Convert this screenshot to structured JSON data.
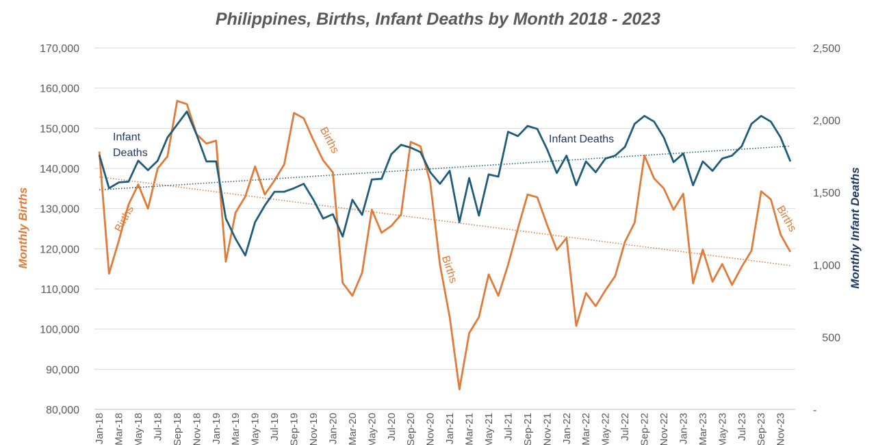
{
  "chart_data": {
    "type": "line",
    "title": "Philippines, Births, Infant Deaths by Month 2018 - 2023",
    "ylabel": "Monthly Births",
    "y2label": "Monthly Infant Deaths",
    "ylim": [
      80000,
      170000
    ],
    "y2lim": [
      0,
      2500
    ],
    "yticks": [
      "80,000",
      "90,000",
      "100,000",
      "110,000",
      "120,000",
      "130,000",
      "140,000",
      "150,000",
      "160,000",
      "170,000"
    ],
    "y2ticks": [
      "-",
      "500",
      "1,000",
      "1,500",
      "2,000",
      "2,500"
    ],
    "grid": true,
    "x": [
      "Jan-18",
      "Feb-18",
      "Mar-18",
      "Apr-18",
      "May-18",
      "Jun-18",
      "Jul-18",
      "Aug-18",
      "Sep-18",
      "Oct-18",
      "Nov-18",
      "Dec-18",
      "Jan-19",
      "Feb-19",
      "Mar-19",
      "Apr-19",
      "May-19",
      "Jun-19",
      "Jul-19",
      "Aug-19",
      "Sep-19",
      "Oct-19",
      "Nov-19",
      "Dec-19",
      "Jan-20",
      "Feb-20",
      "Mar-20",
      "Apr-20",
      "May-20",
      "Jun-20",
      "Jul-20",
      "Aug-20",
      "Sep-20",
      "Oct-20",
      "Nov-20",
      "Dec-20",
      "Jan-21",
      "Feb-21",
      "Mar-21",
      "Apr-21",
      "May-21",
      "Jun-21",
      "Jul-21",
      "Aug-21",
      "Sep-21",
      "Oct-21",
      "Nov-21",
      "Dec-21",
      "Jan-22",
      "Feb-22",
      "Mar-22",
      "Apr-22",
      "May-22",
      "Jun-22",
      "Jul-22",
      "Aug-22",
      "Sep-22",
      "Oct-22",
      "Nov-22",
      "Dec-22",
      "Jan-23",
      "Feb-23",
      "Mar-23",
      "Apr-23",
      "May-23",
      "Jun-23",
      "Jul-23",
      "Aug-23",
      "Sep-23",
      "Oct-23",
      "Nov-23",
      "Dec-23"
    ],
    "xtick_labels": [
      "Jan-18",
      "Mar-18",
      "May-18",
      "Jul-18",
      "Sep-18",
      "Nov-18",
      "Jan-19",
      "Mar-19",
      "May-19",
      "Jul-19",
      "Sep-19",
      "Nov-19",
      "Jan-20",
      "Mar-20",
      "May-20",
      "Jul-20",
      "Sep-20",
      "Nov-20",
      "Jan-21",
      "Mar-21",
      "May-21",
      "Jul-21",
      "Sep-21",
      "Nov-21",
      "Jan-22",
      "Mar-22",
      "May-22",
      "Jul-22",
      "Sep-22",
      "Nov-22",
      "Jan-23",
      "Mar-23",
      "May-23",
      "Jul-23",
      "Sep-23",
      "Nov-23"
    ],
    "series": [
      {
        "name": "Births",
        "axis": "left",
        "color": "#E07B39",
        "trendline": true,
        "values": [
          144200,
          113800,
          122000,
          131000,
          136000,
          130000,
          140000,
          143000,
          156800,
          156000,
          148500,
          146200,
          146900,
          116800,
          129000,
          133000,
          140500,
          133500,
          137000,
          141000,
          153800,
          152500,
          147000,
          142000,
          139000,
          111500,
          108300,
          114000,
          129700,
          124000,
          125700,
          128500,
          146600,
          145500,
          136500,
          116000,
          103000,
          85000,
          99000,
          103000,
          113600,
          108300,
          116000,
          125000,
          133500,
          132800,
          126000,
          119700,
          122700,
          100800,
          109000,
          105700,
          109700,
          113200,
          121700,
          126500,
          143200,
          137500,
          135000,
          129700,
          133700,
          111400,
          119800,
          111800,
          116200,
          111000,
          115500,
          119500,
          134300,
          132300,
          123500,
          119200
        ]
      },
      {
        "name": "Infant Deaths",
        "axis": "right",
        "color": "#1F5C7A",
        "trendline": true,
        "values": [
          1760,
          1530,
          1570,
          1575,
          1720,
          1655,
          1720,
          1880,
          1970,
          2060,
          1900,
          1715,
          1715,
          1320,
          1180,
          1065,
          1295,
          1410,
          1505,
          1505,
          1530,
          1560,
          1450,
          1320,
          1350,
          1195,
          1450,
          1345,
          1590,
          1595,
          1765,
          1830,
          1810,
          1780,
          1640,
          1560,
          1650,
          1295,
          1600,
          1340,
          1625,
          1610,
          1920,
          1890,
          1960,
          1940,
          1800,
          1635,
          1755,
          1550,
          1715,
          1640,
          1735,
          1755,
          1815,
          1975,
          2030,
          1990,
          1880,
          1710,
          1770,
          1550,
          1715,
          1650,
          1735,
          1755,
          1820,
          1975,
          2030,
          1990,
          1880,
          1715
        ]
      }
    ],
    "annotations": [
      {
        "text": "Infant",
        "color": "#1F3864",
        "series": "Infant Deaths",
        "at": "Feb-18"
      },
      {
        "text": "Deaths",
        "color": "#1F3864",
        "series": "Infant Deaths",
        "at": "Feb-18"
      },
      {
        "text": "Infant Deaths",
        "color": "#1F3864",
        "series": "Infant Deaths",
        "at": "Dec-21"
      },
      {
        "text": "Births",
        "color": "#E07B39",
        "series": "Births",
        "at": "Apr-18"
      },
      {
        "text": "Births",
        "color": "#E07B39",
        "series": "Births",
        "at": "Nov-19"
      },
      {
        "text": "Births",
        "color": "#E07B39",
        "series": "Births",
        "at": "Feb-21"
      },
      {
        "text": "Births",
        "color": "#E07B39",
        "series": "Births",
        "at": "Nov-23"
      }
    ],
    "colors": {
      "births": "#E07B39",
      "infant_deaths": "#1F5C7A",
      "left_axis_label": "#E07B39",
      "right_axis_label": "#1F3864",
      "grid": "#D9D9D9",
      "ticks": "#595959",
      "title": "#595959"
    }
  }
}
